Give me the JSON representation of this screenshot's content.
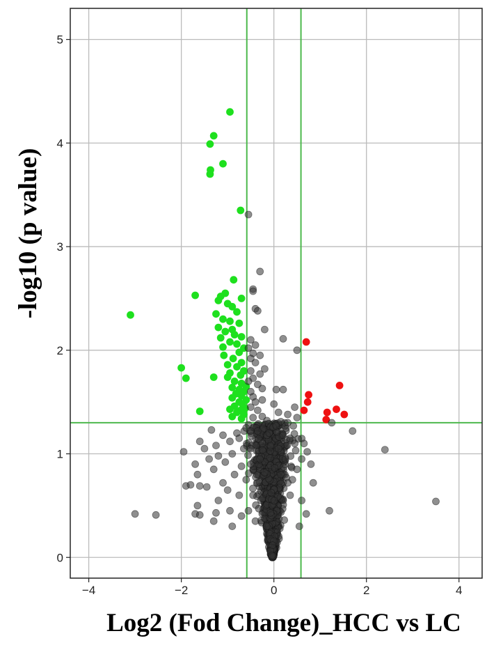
{
  "chart_data": {
    "type": "scatter",
    "title": "",
    "xlabel": "Log2 (Fod Change)_HCC vs LC",
    "ylabel": "-log10 (p value)",
    "xlim": [
      -4.4,
      4.5
    ],
    "ylim": [
      -0.2,
      5.3
    ],
    "x_ticks": [
      -4,
      -2,
      0,
      2,
      4
    ],
    "x_tick_labels": [
      "−4",
      "−2",
      "0",
      "2",
      "4"
    ],
    "y_ticks": [
      0,
      1,
      2,
      3,
      4,
      5
    ],
    "y_tick_labels": [
      "0",
      "1",
      "2",
      "3",
      "4",
      "5"
    ],
    "grid": true,
    "legend": "none",
    "thresholds": {
      "fold_change_log2": [
        -0.585,
        0.585
      ],
      "neg_log10_p": 1.3
    },
    "colors": {
      "down": "#1ee01e",
      "up": "#ee1111",
      "ns": "#333333",
      "threshold_line": "#4cb84c",
      "grid": "#bbbbbb"
    },
    "series": [
      {
        "group": "down",
        "points": [
          [
            -0.95,
            4.3
          ],
          [
            -1.3,
            4.07
          ],
          [
            -1.38,
            3.99
          ],
          [
            -1.1,
            3.8
          ],
          [
            -1.37,
            3.74
          ],
          [
            -1.38,
            3.7
          ],
          [
            -0.72,
            3.35
          ],
          [
            -3.1,
            2.34
          ],
          [
            -1.7,
            2.53
          ],
          [
            -0.87,
            2.68
          ],
          [
            -1.05,
            2.55
          ],
          [
            -1.15,
            2.52
          ],
          [
            -0.7,
            2.5
          ],
          [
            -1.2,
            2.48
          ],
          [
            -1.0,
            2.45
          ],
          [
            -0.9,
            2.42
          ],
          [
            -1.25,
            2.35
          ],
          [
            -0.8,
            2.37
          ],
          [
            -1.1,
            2.3
          ],
          [
            -0.95,
            2.28
          ],
          [
            -0.75,
            2.26
          ],
          [
            -1.2,
            2.22
          ],
          [
            -0.9,
            2.2
          ],
          [
            -1.05,
            2.18
          ],
          [
            -0.85,
            2.15
          ],
          [
            -0.7,
            2.13
          ],
          [
            -1.15,
            2.12
          ],
          [
            -0.95,
            2.08
          ],
          [
            -0.8,
            2.06
          ],
          [
            -1.1,
            2.03
          ],
          [
            -0.65,
            2.02
          ],
          [
            -0.75,
            1.98
          ],
          [
            -1.08,
            1.95
          ],
          [
            -0.88,
            1.92
          ],
          [
            -0.7,
            1.88
          ],
          [
            -1.0,
            1.86
          ],
          [
            -0.8,
            1.84
          ],
          [
            -0.65,
            1.8
          ],
          [
            -0.95,
            1.78
          ],
          [
            -0.72,
            1.76
          ],
          [
            -1.3,
            1.74
          ],
          [
            -1.0,
            1.74
          ],
          [
            -0.85,
            1.7
          ],
          [
            -0.7,
            1.68
          ],
          [
            -0.6,
            1.65
          ],
          [
            -0.9,
            1.64
          ],
          [
            -0.75,
            1.62
          ],
          [
            -0.65,
            1.6
          ],
          [
            -0.82,
            1.58
          ],
          [
            -0.7,
            1.56
          ],
          [
            -0.9,
            1.54
          ],
          [
            -0.6,
            1.52
          ],
          [
            -0.75,
            1.5
          ],
          [
            -0.68,
            1.48
          ],
          [
            -0.85,
            1.46
          ],
          [
            -0.62,
            1.44
          ],
          [
            -0.95,
            1.43
          ],
          [
            -0.72,
            1.42
          ],
          [
            -0.8,
            1.4
          ],
          [
            -0.65,
            1.38
          ],
          [
            -0.9,
            1.36
          ],
          [
            -0.7,
            1.34
          ],
          [
            -1.6,
            1.41
          ],
          [
            -2.0,
            1.83
          ],
          [
            -1.9,
            1.73
          ]
        ]
      },
      {
        "group": "up",
        "points": [
          [
            0.7,
            2.08
          ],
          [
            1.42,
            1.66
          ],
          [
            0.75,
            1.57
          ],
          [
            0.73,
            1.5
          ],
          [
            1.35,
            1.43
          ],
          [
            0.65,
            1.42
          ],
          [
            1.15,
            1.4
          ],
          [
            1.52,
            1.38
          ],
          [
            1.13,
            1.33
          ]
        ]
      },
      {
        "group": "ns",
        "points": [
          [
            -0.55,
            3.31
          ],
          [
            -0.3,
            2.76
          ],
          [
            -0.45,
            2.59
          ],
          [
            -0.45,
            2.57
          ],
          [
            -0.4,
            2.4
          ],
          [
            -0.35,
            2.38
          ],
          [
            -0.2,
            2.2
          ],
          [
            0.2,
            2.11
          ],
          [
            -0.5,
            2.1
          ],
          [
            -0.4,
            2.05
          ],
          [
            -0.55,
            2.02
          ],
          [
            0.5,
            2.0
          ],
          [
            -0.45,
            1.97
          ],
          [
            -0.3,
            1.95
          ],
          [
            -0.5,
            1.92
          ],
          [
            -0.4,
            1.88
          ],
          [
            -0.2,
            1.82
          ],
          [
            -0.5,
            1.8
          ],
          [
            -0.3,
            1.77
          ],
          [
            -0.45,
            1.73
          ],
          [
            -0.55,
            1.7
          ],
          [
            -0.35,
            1.67
          ],
          [
            -0.25,
            1.63
          ],
          [
            0.05,
            1.62
          ],
          [
            0.2,
            1.62
          ],
          [
            -0.5,
            1.6
          ],
          [
            -0.45,
            1.55
          ],
          [
            -0.25,
            1.52
          ],
          [
            -0.4,
            1.5
          ],
          [
            0.0,
            1.48
          ],
          [
            0.45,
            1.45
          ],
          [
            -0.5,
            1.45
          ],
          [
            -0.35,
            1.42
          ],
          [
            0.1,
            1.4
          ],
          [
            0.3,
            1.38
          ],
          [
            -0.25,
            1.36
          ],
          [
            -0.45,
            1.35
          ],
          [
            0.5,
            1.35
          ],
          [
            -0.15,
            1.32
          ],
          [
            0.15,
            1.31
          ],
          [
            0.3,
            1.3
          ],
          [
            -0.55,
            1.28
          ],
          [
            0.05,
            1.27
          ],
          [
            0.42,
            1.27
          ],
          [
            1.25,
            1.3
          ],
          [
            1.7,
            1.22
          ],
          [
            2.4,
            1.04
          ],
          [
            3.5,
            0.54
          ],
          [
            -0.6,
            1.25
          ],
          [
            -0.35,
            1.22
          ],
          [
            -0.1,
            1.2
          ],
          [
            0.2,
            1.18
          ],
          [
            0.35,
            1.15
          ],
          [
            -0.8,
            1.2
          ],
          [
            -1.1,
            1.18
          ],
          [
            -1.35,
            1.23
          ],
          [
            -0.95,
            1.12
          ],
          [
            -1.25,
            1.08
          ],
          [
            -1.5,
            1.05
          ],
          [
            -1.6,
            1.12
          ],
          [
            -1.95,
            1.02
          ],
          [
            -1.4,
            0.95
          ],
          [
            -1.7,
            0.9
          ],
          [
            -1.2,
            0.98
          ],
          [
            -0.9,
            1.0
          ],
          [
            -1.05,
            0.92
          ],
          [
            -1.3,
            0.85
          ],
          [
            -1.65,
            0.8
          ],
          [
            -1.9,
            0.69
          ],
          [
            -1.8,
            0.7
          ],
          [
            -1.6,
            0.69
          ],
          [
            -1.45,
            0.68
          ],
          [
            -1.1,
            0.72
          ],
          [
            -0.85,
            0.8
          ],
          [
            -1.0,
            0.65
          ],
          [
            -0.75,
            0.6
          ],
          [
            -1.2,
            0.55
          ],
          [
            -1.65,
            0.5
          ],
          [
            -1.7,
            0.42
          ],
          [
            -1.6,
            0.41
          ],
          [
            -3.0,
            0.42
          ],
          [
            -2.55,
            0.41
          ],
          [
            -1.3,
            0.35
          ],
          [
            -1.25,
            0.43
          ],
          [
            -0.95,
            0.45
          ],
          [
            -0.7,
            0.4
          ],
          [
            -0.9,
            0.3
          ],
          [
            0.6,
            0.55
          ],
          [
            0.7,
            0.42
          ],
          [
            0.55,
            0.3
          ],
          [
            0.85,
            0.72
          ],
          [
            0.8,
            0.9
          ],
          [
            0.72,
            1.02
          ],
          [
            0.6,
            0.95
          ],
          [
            0.5,
            0.85
          ],
          [
            0.45,
            1.1
          ],
          [
            0.4,
            0.75
          ],
          [
            1.2,
            0.45
          ],
          [
            0.65,
            1.1
          ],
          [
            0.35,
            0.6
          ],
          [
            -0.5,
            0.9
          ],
          [
            -0.6,
            0.75
          ],
          [
            -0.45,
            0.6
          ],
          [
            -0.55,
            0.45
          ],
          [
            -0.4,
            0.35
          ],
          [
            -0.5,
            1.05
          ],
          [
            -0.3,
            0.95
          ],
          [
            0.25,
            0.95
          ],
          [
            0.3,
            0.72
          ],
          [
            0.15,
            0.8
          ],
          [
            0.2,
            0.55
          ],
          [
            -0.25,
            1.1
          ],
          [
            0.1,
            1.05
          ],
          [
            -0.65,
            1.05
          ],
          [
            -0.7,
            0.88
          ],
          [
            -0.75,
            1.15
          ],
          [
            -0.2,
            0.82
          ],
          [
            -0.35,
            0.72
          ]
        ],
        "funnel": {
          "x_center": -0.03,
          "y_max": 1.3,
          "spread_at_top": 0.42,
          "count": 1150
        }
      }
    ]
  }
}
